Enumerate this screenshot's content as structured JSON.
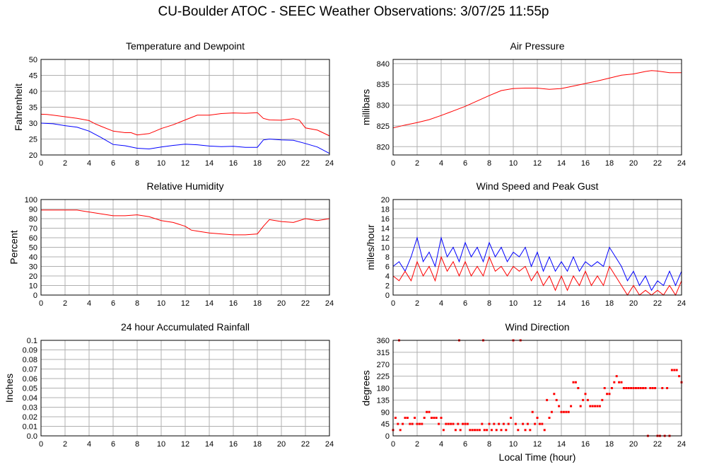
{
  "figure_title": "CU-Boulder ATOC - SEEC Weather Observations: 3/07/25 11:55p",
  "colors": {
    "red": "#ff0000",
    "blue": "#0000ff",
    "grid": "#b0b0b0",
    "frame": "#000000"
  },
  "chart_data": [
    {
      "id": "temperature",
      "type": "line",
      "title": "Temperature and Dewpoint",
      "xlabel": "",
      "ylabel": "Fahrenheit",
      "xlim": [
        0,
        24
      ],
      "ylim": [
        20,
        50
      ],
      "x_ticks": [
        0,
        2,
        4,
        6,
        8,
        10,
        12,
        14,
        16,
        18,
        20,
        22,
        24
      ],
      "y_ticks": [
        20,
        25,
        30,
        35,
        40,
        45,
        50
      ],
      "grid": true,
      "series": [
        {
          "color": "#ff0000",
          "x": [
            0,
            0.5,
            1,
            2,
            3,
            4,
            4.5,
            5,
            6,
            7,
            7.5,
            8,
            9,
            9.5,
            10,
            11,
            12,
            13,
            14,
            15,
            16,
            17,
            18,
            18.5,
            19,
            20,
            21,
            21.5,
            22,
            23,
            24
          ],
          "y": [
            32.8,
            32.7,
            32.5,
            32,
            31.5,
            30.8,
            29.8,
            29,
            27.5,
            27,
            27,
            26.3,
            26.7,
            27.5,
            28.3,
            29.5,
            31,
            32.5,
            32.5,
            33,
            33.2,
            33.1,
            33.3,
            31.5,
            31,
            30.9,
            31.4,
            30.9,
            28.5,
            27.8,
            26
          ]
        },
        {
          "color": "#0000ff",
          "x": [
            0,
            1,
            2,
            3,
            4,
            4.5,
            5,
            6,
            7,
            8,
            9,
            10,
            11,
            12,
            13,
            14,
            15,
            16,
            17,
            18,
            18.5,
            19,
            20,
            21,
            22,
            23,
            24
          ],
          "y": [
            30,
            29.8,
            29.2,
            28.7,
            27.5,
            26.5,
            25.5,
            23.3,
            22.9,
            22.1,
            21.9,
            22.5,
            23,
            23.4,
            23.2,
            22.8,
            22.6,
            22.7,
            22.4,
            22.4,
            24.7,
            25,
            24.7,
            24.6,
            23.6,
            22.5,
            20.5
          ]
        }
      ]
    },
    {
      "id": "pressure",
      "type": "line",
      "title": "Air Pressure",
      "xlabel": "",
      "ylabel": "millibars",
      "xlim": [
        0,
        24
      ],
      "ylim": [
        818,
        841
      ],
      "x_ticks": [
        0,
        2,
        4,
        6,
        8,
        10,
        12,
        14,
        16,
        18,
        20,
        22,
        24
      ],
      "y_ticks": [
        820,
        825,
        830,
        835,
        840
      ],
      "grid": true,
      "series": [
        {
          "color": "#ff0000",
          "x": [
            0,
            1,
            2,
            3,
            4,
            5,
            6,
            7,
            8,
            9,
            10,
            11,
            12,
            13,
            14,
            15,
            16,
            17,
            18,
            19,
            20,
            21,
            21.5,
            22,
            23,
            24
          ],
          "y": [
            824.5,
            825.2,
            825.8,
            826.5,
            827.5,
            828.6,
            829.7,
            831,
            832.3,
            833.5,
            834,
            834.1,
            834.1,
            833.8,
            834,
            834.6,
            835.2,
            835.8,
            836.5,
            837.2,
            837.5,
            838.1,
            838.3,
            838.2,
            837.8,
            837.8
          ]
        }
      ]
    },
    {
      "id": "humidity",
      "type": "line",
      "title": "Relative Humidity",
      "xlabel": "",
      "ylabel": "Percent",
      "xlim": [
        0,
        24
      ],
      "ylim": [
        0,
        100
      ],
      "x_ticks": [
        0,
        2,
        4,
        6,
        8,
        10,
        12,
        14,
        16,
        18,
        20,
        22,
        24
      ],
      "y_ticks": [
        0,
        10,
        20,
        30,
        40,
        50,
        60,
        70,
        80,
        90,
        100
      ],
      "grid": true,
      "series": [
        {
          "color": "#ff0000",
          "x": [
            0,
            1,
            2,
            3,
            3.5,
            4,
            5,
            6,
            7,
            8,
            9,
            10,
            11,
            12,
            12.5,
            13,
            14,
            15,
            16,
            17,
            18,
            18.5,
            19,
            20,
            21,
            22,
            23,
            24
          ],
          "y": [
            89,
            89,
            89,
            89,
            88,
            87,
            85,
            83,
            83,
            84,
            82,
            78,
            76,
            72,
            68,
            67,
            65,
            64,
            63,
            63,
            64,
            72,
            79,
            77,
            76,
            80,
            78,
            80
          ]
        }
      ]
    },
    {
      "id": "wind",
      "type": "line",
      "title": "Wind Speed and Peak Gust",
      "xlabel": "",
      "ylabel": "miles/hour",
      "xlim": [
        0,
        24
      ],
      "ylim": [
        0,
        20
      ],
      "x_ticks": [
        0,
        2,
        4,
        6,
        8,
        10,
        12,
        14,
        16,
        18,
        20,
        22,
        24
      ],
      "y_ticks": [
        0,
        2,
        4,
        6,
        8,
        10,
        12,
        14,
        16,
        18,
        20
      ],
      "grid": true,
      "series": [
        {
          "color": "#0000ff",
          "x": [
            0,
            0.5,
            1,
            1.5,
            2,
            2.5,
            3,
            3.5,
            4,
            4.5,
            5,
            5.5,
            6,
            6.5,
            7,
            7.5,
            8,
            8.5,
            9,
            9.5,
            10,
            10.5,
            11,
            11.5,
            12,
            12.5,
            13,
            13.5,
            14,
            14.5,
            15,
            15.5,
            16,
            16.5,
            17,
            17.5,
            18,
            18.5,
            19,
            19.5,
            20,
            20.5,
            21,
            21.5,
            22,
            22.5,
            23,
            23.5,
            24
          ],
          "y": [
            6,
            7,
            5,
            8,
            12,
            7,
            9,
            6,
            12,
            8,
            10,
            7,
            11,
            8,
            10,
            7,
            11,
            8,
            10,
            7,
            9,
            8,
            10,
            6,
            9,
            5,
            8,
            5,
            7,
            5,
            8,
            5,
            7,
            6,
            7,
            6,
            10,
            8,
            6,
            3,
            5,
            2,
            4,
            1,
            3,
            2,
            5,
            2,
            5
          ]
        },
        {
          "color": "#ff0000",
          "x": [
            0,
            0.5,
            1,
            1.5,
            2,
            2.5,
            3,
            3.5,
            4,
            4.5,
            5,
            5.5,
            6,
            6.5,
            7,
            7.5,
            8,
            8.5,
            9,
            9.5,
            10,
            10.5,
            11,
            11.5,
            12,
            12.5,
            13,
            13.5,
            14,
            14.5,
            15,
            15.5,
            16,
            16.5,
            17,
            17.5,
            18,
            18.5,
            19,
            19.5,
            20,
            20.5,
            21,
            21.5,
            22,
            22.5,
            23,
            23.5,
            24
          ],
          "y": [
            4,
            3,
            5,
            3,
            7,
            4,
            6,
            3,
            8,
            5,
            7,
            4,
            7,
            4,
            6,
            4,
            8,
            5,
            6,
            4,
            6,
            5,
            6,
            3,
            5,
            2,
            4,
            1,
            4,
            1,
            4,
            2,
            5,
            2,
            4,
            2,
            6,
            4,
            2,
            0,
            2,
            0,
            1,
            0,
            1,
            0,
            2,
            0,
            3
          ]
        }
      ]
    },
    {
      "id": "rainfall",
      "type": "line",
      "title": "24 hour Accumulated Rainfall",
      "xlabel": "",
      "ylabel": "Inches",
      "xlim": [
        0,
        24
      ],
      "ylim": [
        0,
        0.1
      ],
      "x_ticks": [
        0,
        2,
        4,
        6,
        8,
        10,
        12,
        14,
        16,
        18,
        20,
        22,
        24
      ],
      "y_ticks": [
        0.0,
        0.01,
        0.02,
        0.03,
        0.04,
        0.05,
        0.06,
        0.07,
        0.08,
        0.09,
        0.1
      ],
      "y_tick_labels": [
        "0.0",
        "0.01",
        "0.02",
        "0.03",
        "0.04",
        "0.05",
        "0.06",
        "0.07",
        "0.08",
        "0.09",
        "0.1"
      ],
      "grid": true,
      "series": [
        {
          "color": "#ff0000",
          "x": [
            0,
            24
          ],
          "y": [
            0,
            0
          ]
        }
      ]
    },
    {
      "id": "direction",
      "type": "scatter",
      "title": "Wind Direction",
      "xlabel": "Local Time (hour)",
      "ylabel": "degrees",
      "xlim": [
        0,
        24
      ],
      "ylim": [
        0,
        360
      ],
      "x_ticks": [
        0,
        2,
        4,
        6,
        8,
        10,
        12,
        14,
        16,
        18,
        20,
        22,
        24
      ],
      "y_ticks": [
        0,
        45,
        90,
        135,
        180,
        225,
        270,
        315,
        360
      ],
      "grid": true,
      "series": [
        {
          "color": "#ff0000",
          "x": [
            0.0,
            0.2,
            0.4,
            0.5,
            0.6,
            0.8,
            1.0,
            1.2,
            1.4,
            1.6,
            1.8,
            2.0,
            2.2,
            2.4,
            2.6,
            2.8,
            3.0,
            3.2,
            3.4,
            3.6,
            3.8,
            4.0,
            4.2,
            4.4,
            4.6,
            4.8,
            5.0,
            5.2,
            5.4,
            5.5,
            5.6,
            5.8,
            6.0,
            6.2,
            6.4,
            6.6,
            6.8,
            7.0,
            7.2,
            7.4,
            7.5,
            7.6,
            7.8,
            8.0,
            8.2,
            8.4,
            8.6,
            8.8,
            9.0,
            9.2,
            9.4,
            9.6,
            9.8,
            10.0,
            10.2,
            10.4,
            10.6,
            10.8,
            11.0,
            11.2,
            11.4,
            11.6,
            11.8,
            12.0,
            12.2,
            12.4,
            12.6,
            12.8,
            13.0,
            13.2,
            13.4,
            13.6,
            13.8,
            14.0,
            14.2,
            14.4,
            14.6,
            14.8,
            15.0,
            15.2,
            15.4,
            15.6,
            15.8,
            16.0,
            16.2,
            16.4,
            16.6,
            16.8,
            17.0,
            17.2,
            17.4,
            17.6,
            17.8,
            18.0,
            18.2,
            18.4,
            18.6,
            18.8,
            19.0,
            19.2,
            19.4,
            19.6,
            19.8,
            20.0,
            20.2,
            20.4,
            20.6,
            20.8,
            21.0,
            21.2,
            21.4,
            21.6,
            21.8,
            22.0,
            22.2,
            22.4,
            22.6,
            22.8,
            23.0,
            23.2,
            23.4,
            23.6,
            23.8,
            24.0
          ],
          "y": [
            22,
            68,
            45,
            360,
            22,
            45,
            68,
            68,
            45,
            45,
            68,
            45,
            45,
            45,
            68,
            90,
            90,
            68,
            68,
            68,
            45,
            68,
            22,
            45,
            45,
            45,
            45,
            22,
            45,
            360,
            22,
            45,
            45,
            45,
            22,
            22,
            22,
            22,
            22,
            45,
            360,
            22,
            22,
            45,
            22,
            45,
            22,
            45,
            22,
            45,
            22,
            45,
            68,
            360,
            45,
            22,
            360,
            45,
            22,
            45,
            22,
            90,
            45,
            68,
            45,
            45,
            22,
            135,
            68,
            90,
            158,
            135,
            112,
            90,
            90,
            90,
            90,
            112,
            202,
            202,
            180,
            112,
            135,
            158,
            135,
            112,
            112,
            112,
            112,
            112,
            135,
            180,
            158,
            158,
            180,
            202,
            225,
            202,
            202,
            180,
            180,
            180,
            180,
            180,
            180,
            180,
            180,
            180,
            180,
            0,
            180,
            180,
            180,
            0,
            0,
            180,
            0,
            180,
            0,
            248,
            248,
            248,
            225,
            202
          ]
        }
      ]
    }
  ]
}
